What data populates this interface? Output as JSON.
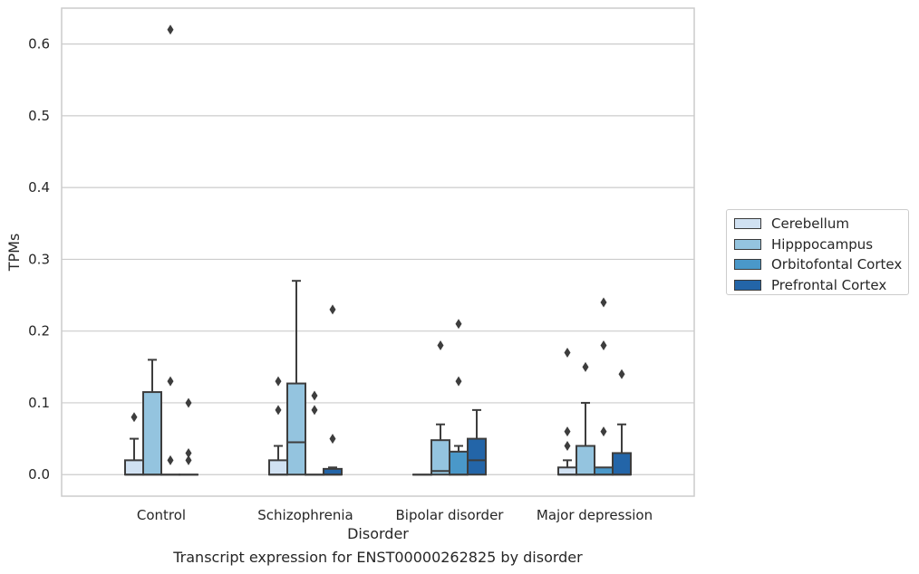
{
  "chart_data": {
    "type": "box",
    "title": "",
    "caption": "Transcript expression for ENST00000262825 by disorder",
    "xlabel": "Disorder",
    "ylabel": "TPMs",
    "ylim": [
      -0.03,
      0.65
    ],
    "yticks": [
      "0.0",
      "0.1",
      "0.2",
      "0.3",
      "0.4",
      "0.5",
      "0.6"
    ],
    "grid": "horizontal",
    "legend_position": "right",
    "categories": [
      "Control",
      "Schizophrenia",
      "Bipolar disorder",
      "Major depression"
    ],
    "series": [
      {
        "name": "Cerebellum",
        "color": "#d0e1f2",
        "boxes": [
          {
            "whislo": 0.0,
            "q1": 0.0,
            "med": 0.0,
            "q3": 0.02,
            "whishi": 0.05,
            "fliers": [
              0.08
            ]
          },
          {
            "whislo": 0.0,
            "q1": 0.0,
            "med": 0.0,
            "q3": 0.02,
            "whishi": 0.04,
            "fliers": [
              0.09,
              0.13
            ]
          },
          {
            "whislo": 0.0,
            "q1": 0.0,
            "med": 0.0,
            "q3": 0.0,
            "whishi": 0.0,
            "fliers": []
          },
          {
            "whislo": 0.0,
            "q1": 0.0,
            "med": 0.0,
            "q3": 0.01,
            "whishi": 0.02,
            "fliers": [
              0.04,
              0.06,
              0.17
            ]
          }
        ]
      },
      {
        "name": "Hipppocampus",
        "color": "#94c4df",
        "boxes": [
          {
            "whislo": 0.0,
            "q1": 0.0,
            "med": 0.0,
            "q3": 0.115,
            "whishi": 0.16,
            "fliers": []
          },
          {
            "whislo": 0.0,
            "q1": 0.0,
            "med": 0.045,
            "q3": 0.127,
            "whishi": 0.27,
            "fliers": []
          },
          {
            "whislo": 0.0,
            "q1": 0.0,
            "med": 0.005,
            "q3": 0.048,
            "whishi": 0.07,
            "fliers": [
              0.18
            ]
          },
          {
            "whislo": 0.0,
            "q1": 0.0,
            "med": 0.0,
            "q3": 0.04,
            "whishi": 0.1,
            "fliers": [
              0.15
            ]
          }
        ]
      },
      {
        "name": "Orbitofontal Cortex",
        "color": "#4a98c9",
        "boxes": [
          {
            "whislo": 0.0,
            "q1": 0.0,
            "med": 0.0,
            "q3": 0.0,
            "whishi": 0.0,
            "fliers": [
              0.02,
              0.13,
              0.62
            ]
          },
          {
            "whislo": 0.0,
            "q1": 0.0,
            "med": 0.0,
            "q3": 0.0,
            "whishi": 0.0,
            "fliers": [
              0.09,
              0.11
            ]
          },
          {
            "whislo": 0.0,
            "q1": 0.0,
            "med": 0.0,
            "q3": 0.032,
            "whishi": 0.04,
            "fliers": [
              0.13,
              0.21
            ]
          },
          {
            "whislo": 0.0,
            "q1": 0.0,
            "med": 0.0,
            "q3": 0.01,
            "whishi": 0.01,
            "fliers": [
              0.06,
              0.18,
              0.24
            ]
          }
        ]
      },
      {
        "name": "Prefrontal Cortex",
        "color": "#2365a8",
        "boxes": [
          {
            "whislo": 0.0,
            "q1": 0.0,
            "med": 0.0,
            "q3": 0.0,
            "whishi": 0.0,
            "fliers": [
              0.02,
              0.03,
              0.1
            ]
          },
          {
            "whislo": 0.0,
            "q1": 0.0,
            "med": 0.0,
            "q3": 0.008,
            "whishi": 0.01,
            "fliers": [
              0.05,
              0.23
            ]
          },
          {
            "whislo": 0.0,
            "q1": 0.0,
            "med": 0.02,
            "q3": 0.05,
            "whishi": 0.09,
            "fliers": []
          },
          {
            "whislo": 0.0,
            "q1": 0.0,
            "med": 0.0,
            "q3": 0.03,
            "whishi": 0.07,
            "fliers": [
              0.14
            ]
          }
        ]
      }
    ]
  }
}
